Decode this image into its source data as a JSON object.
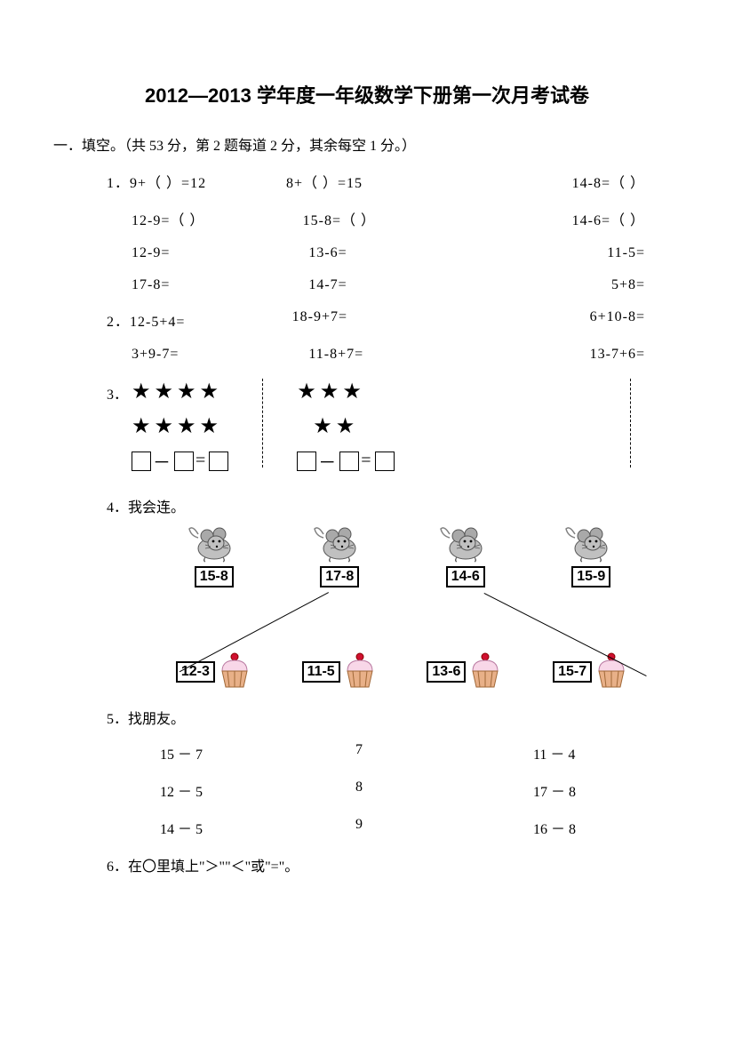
{
  "title": "2012—2013 学年度一年级数学下册第一次月考试卷",
  "section1": {
    "heading": "一．填空。（共 53 分，第 2 题每道 2 分，其余每空 1 分。）",
    "q1": {
      "label": "1．",
      "rows": [
        [
          "9+（   ）=12",
          "8+（   ）=15",
          "14-8=（   ）"
        ],
        [
          "12-9=（   ）",
          "15-8=（   ）",
          "14-6=（   ）"
        ],
        [
          "12-9=",
          "13-6=",
          "11-5="
        ],
        [
          "17-8=",
          "14-7=",
          "5+8="
        ]
      ]
    },
    "q2": {
      "label": "2．",
      "rows": [
        [
          "12-5+4=",
          "18-9+7=",
          "6+10-8="
        ],
        [
          "3+9-7=",
          "11-8+7=",
          "13-7+6="
        ]
      ]
    },
    "q3": {
      "label": "3．",
      "groups": [
        {
          "stars_top": "★★★★",
          "stars_bottom": "★★★★"
        },
        {
          "stars_top": "★★★",
          "stars_bottom": "★★"
        }
      ],
      "boxeq_minus": "－",
      "boxeq_equals": "="
    },
    "q4": {
      "label": "4．",
      "heading": "我会连。",
      "mice": [
        "15-8",
        "17-8",
        "14-6",
        "15-9"
      ],
      "cakes": [
        "12-3",
        "11-5",
        "13-6",
        "15-7"
      ]
    },
    "q5": {
      "label": "5．",
      "heading": "找朋友。",
      "rows": [
        [
          "15 － 7",
          "7",
          "11 － 4"
        ],
        [
          "12 － 5",
          "8",
          "17 － 8"
        ],
        [
          "14 － 5",
          "9",
          "16 － 8"
        ]
      ]
    },
    "q6": {
      "label": "6．",
      "heading": "在〇里填上\"＞\"\"＜\"或\"=\"。"
    }
  },
  "style": {
    "page_bg": "#ffffff",
    "text_color": "#000000",
    "title_fontsize": 22,
    "body_fontsize": 16,
    "mouse_body": "#c0c0c0",
    "mouse_ear": "#a9a9a9",
    "mouse_tail": "#808080",
    "cake_top": "#f8d7e8",
    "cake_base": "#e8b088",
    "cherry": "#d01030"
  }
}
